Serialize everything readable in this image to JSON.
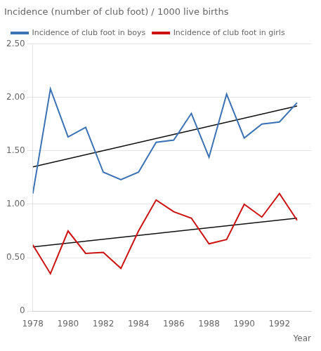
{
  "chart_data": {
    "type": "line",
    "title": "Incidence (number of club foot) / 1000 live births",
    "x_label": "Year",
    "series": [
      {
        "name": "Incidence of club foot in boys",
        "color": "#3a72b5",
        "x": [
          1978,
          1979,
          1980,
          1981,
          1982,
          1983,
          1984,
          1985,
          1986,
          1987,
          1988,
          1989,
          1990,
          1991,
          1992,
          1993
        ],
        "values": [
          1.1,
          2.08,
          1.63,
          1.72,
          1.3,
          1.23,
          1.3,
          1.58,
          1.6,
          1.85,
          1.44,
          2.03,
          1.62,
          1.75,
          1.77,
          1.95
        ]
      },
      {
        "name": "Incidence of club foot in girls",
        "color": "#cc1111",
        "x": [
          1978,
          1979,
          1980,
          1981,
          1982,
          1983,
          1984,
          1985,
          1986,
          1987,
          1988,
          1989,
          1990,
          1991,
          1992,
          1993
        ],
        "values": [
          0.62,
          0.35,
          0.75,
          0.54,
          0.55,
          0.4,
          0.75,
          1.04,
          0.93,
          0.87,
          0.63,
          0.67,
          1.0,
          0.88,
          1.1,
          0.85
        ]
      },
      {
        "color": "#111111",
        "x": [
          1978,
          1993
        ],
        "values": [
          1.35,
          1.92
        ]
      },
      {
        "color": "#111111",
        "x": [
          1978,
          1993
        ],
        "values": [
          0.6,
          0.87
        ]
      }
    ],
    "xlim": [
      1978,
      1993.8
    ],
    "xticks": [
      1978,
      1980,
      1982,
      1984,
      1986,
      1988,
      1990,
      1992
    ],
    "ylim": [
      0,
      2.5
    ],
    "yticks": [
      0,
      {
        "value": 0.5,
        "label": "0.50"
      },
      {
        "value": 1.0,
        "label": "1.00"
      },
      {
        "value": 1.5,
        "label": "1.50"
      },
      {
        "value": 2.0,
        "label": "2.00"
      },
      {
        "value": 2.5,
        "label": "2.50"
      }
    ],
    "grid": "y",
    "legend": "upper left"
  }
}
